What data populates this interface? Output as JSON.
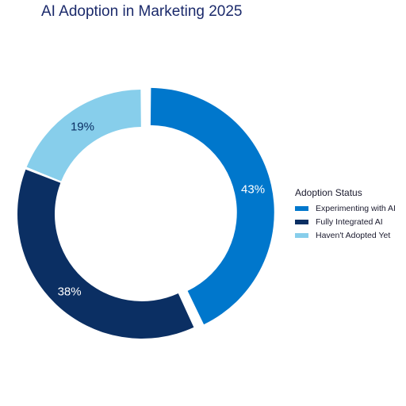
{
  "chart_data": {
    "type": "pie",
    "title": "AI Adoption in Marketing 2025",
    "categories": [
      "Experimenting with AI",
      "Fully Integrated AI",
      "Haven't Adopted Yet"
    ],
    "values": [
      43,
      38,
      19
    ],
    "labels": [
      "43%",
      "38%",
      "19%"
    ],
    "colors": [
      "#0077cc",
      "#0b2f63",
      "#87ceeb"
    ],
    "legend_title": "Adoption Status",
    "legend_position": "right",
    "donut": true,
    "exploded_slice": "Experimenting with AI"
  }
}
